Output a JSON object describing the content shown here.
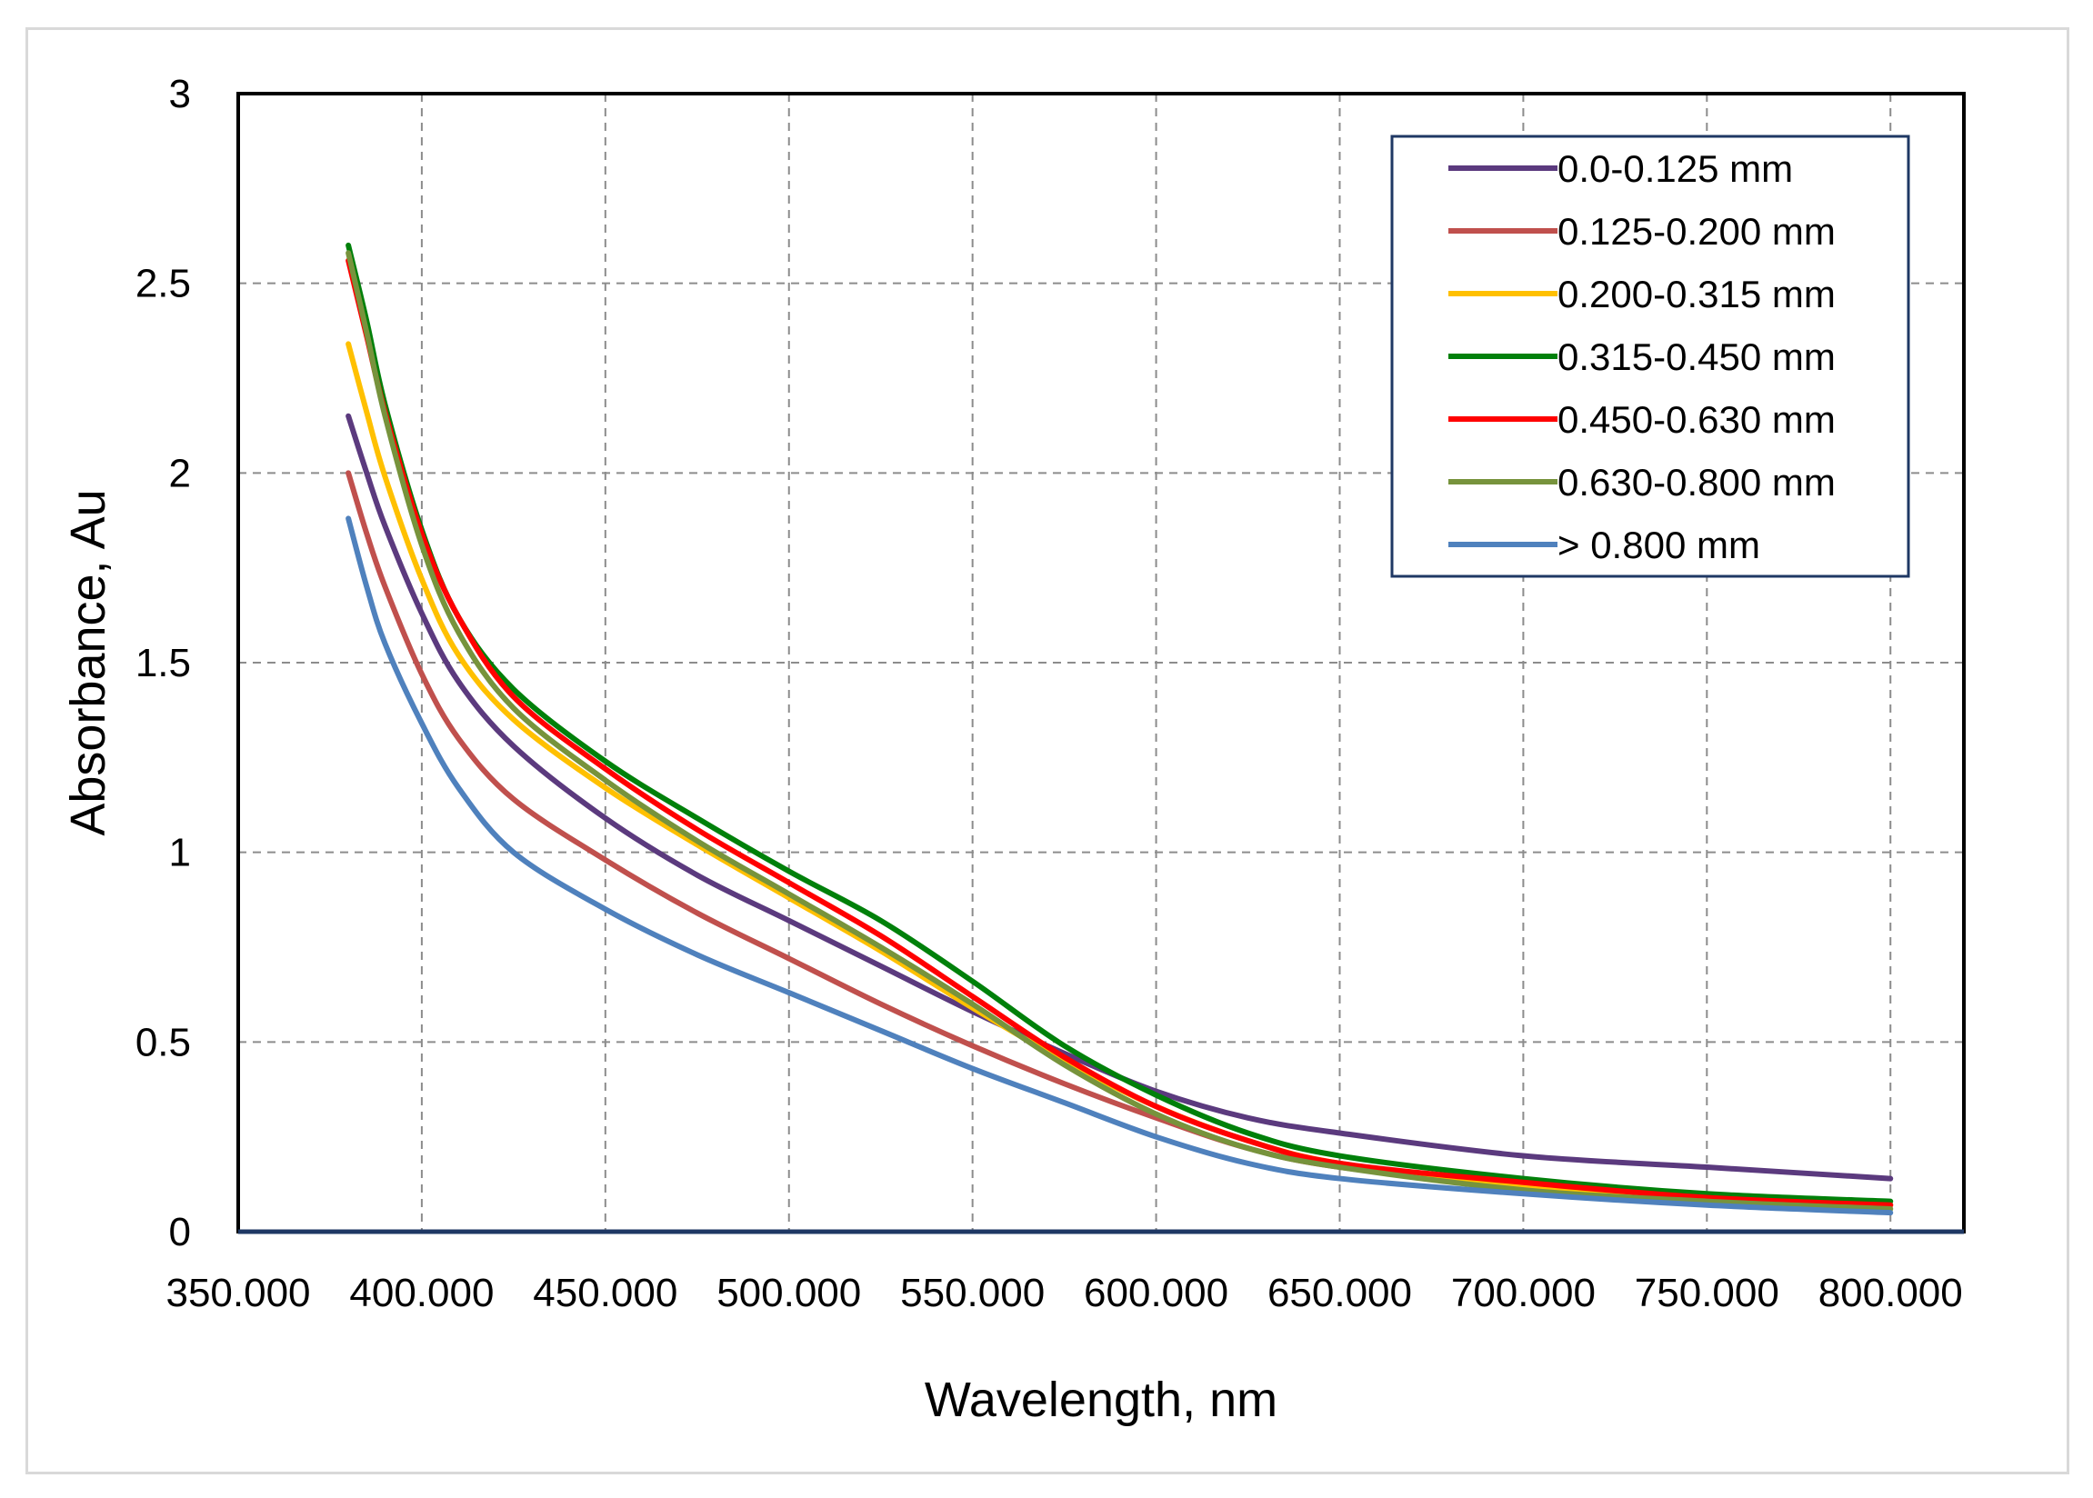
{
  "chart_data": {
    "type": "line",
    "title": "",
    "xlabel": "Wavelength, nm",
    "ylabel": "Absorbance, Au",
    "xlim": [
      350,
      820
    ],
    "ylim": [
      0,
      3
    ],
    "xticks": [
      350,
      400,
      450,
      500,
      550,
      600,
      650,
      700,
      750,
      800
    ],
    "xtick_labels": [
      "350.000",
      "400.000",
      "450.000",
      "500.000",
      "550.000",
      "600.000",
      "650.000",
      "700.000",
      "750.000",
      "800.000"
    ],
    "yticks": [
      0,
      0.5,
      1,
      1.5,
      2,
      2.5,
      3
    ],
    "ytick_labels": [
      "0",
      "0.5",
      "1",
      "1.5",
      "2",
      "2.5",
      "3"
    ],
    "grid": true,
    "legend_position": "top-right",
    "x": [
      380,
      385,
      390,
      400,
      410,
      425,
      450,
      475,
      500,
      525,
      550,
      575,
      600,
      625,
      650,
      700,
      750,
      800
    ],
    "series": [
      {
        "name": "0.0-0.125 mm",
        "color": "#5b3a7e",
        "values": [
          2.15,
          2.0,
          1.86,
          1.63,
          1.45,
          1.28,
          1.09,
          0.94,
          0.82,
          0.7,
          0.58,
          0.47,
          0.37,
          0.3,
          0.26,
          0.2,
          0.17,
          0.14
        ]
      },
      {
        "name": "0.125-0.200 mm",
        "color": "#c0504d",
        "values": [
          2.0,
          1.84,
          1.7,
          1.47,
          1.3,
          1.14,
          0.98,
          0.84,
          0.72,
          0.6,
          0.49,
          0.39,
          0.3,
          0.22,
          0.17,
          0.12,
          0.09,
          0.07
        ]
      },
      {
        "name": "0.200-0.315 mm",
        "color": "#ffc000",
        "values": [
          2.34,
          2.16,
          1.99,
          1.72,
          1.52,
          1.35,
          1.17,
          1.02,
          0.88,
          0.74,
          0.59,
          0.45,
          0.33,
          0.24,
          0.18,
          0.12,
          0.09,
          0.07
        ]
      },
      {
        "name": "0.315-0.450 mm",
        "color": "#00800a",
        "values": [
          2.6,
          2.4,
          2.18,
          1.85,
          1.62,
          1.43,
          1.24,
          1.09,
          0.95,
          0.82,
          0.66,
          0.49,
          0.36,
          0.26,
          0.2,
          0.14,
          0.1,
          0.08
        ]
      },
      {
        "name": "0.450-0.630 mm",
        "color": "#ff0000",
        "values": [
          2.56,
          2.36,
          2.16,
          1.84,
          1.62,
          1.41,
          1.22,
          1.06,
          0.92,
          0.78,
          0.62,
          0.46,
          0.33,
          0.24,
          0.18,
          0.13,
          0.09,
          0.07
        ]
      },
      {
        "name": "0.630-0.800 mm",
        "color": "#77933c",
        "values": [
          2.58,
          2.37,
          2.15,
          1.81,
          1.58,
          1.38,
          1.19,
          1.03,
          0.89,
          0.75,
          0.6,
          0.44,
          0.31,
          0.22,
          0.17,
          0.11,
          0.08,
          0.06
        ]
      },
      {
        "name": "> 0.800 mm",
        "color": "#4f81bd",
        "values": [
          1.88,
          1.7,
          1.55,
          1.34,
          1.17,
          1.0,
          0.85,
          0.73,
          0.63,
          0.53,
          0.43,
          0.34,
          0.25,
          0.18,
          0.14,
          0.1,
          0.07,
          0.05
        ]
      }
    ]
  },
  "colors": {
    "frame_border": "#d9d9d9",
    "plot_border": "#000000",
    "grid": "#8c8c8c",
    "x_axis_line": "#1f3864",
    "legend_border": "#1f3864"
  }
}
